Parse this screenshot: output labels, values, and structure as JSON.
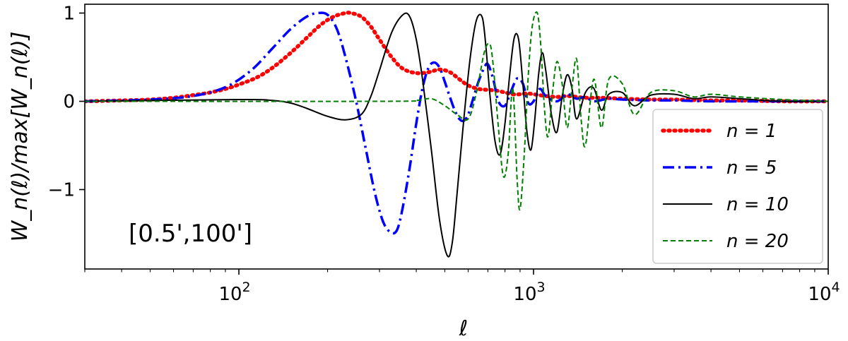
{
  "chart_data": {
    "type": "line",
    "title": "",
    "xlabel": "ℓ",
    "ylabel": "W_n(ℓ)/max[W_n(ℓ)]",
    "xscale": "log",
    "xlim": [
      30,
      10000
    ],
    "ylim": [
      -1.9,
      1.1
    ],
    "x_ticks": [
      {
        "value": 100,
        "label": "10",
        "exp": "2"
      },
      {
        "value": 1000,
        "label": "10",
        "exp": "3"
      },
      {
        "value": 10000,
        "label": "10",
        "exp": "4"
      }
    ],
    "y_ticks": [
      {
        "value": -1,
        "label": "−1"
      },
      {
        "value": 0,
        "label": "0"
      },
      {
        "value": 1,
        "label": "1"
      }
    ],
    "grid": false,
    "legend_position": "lower-right",
    "annotation": "[0.5',100']",
    "series": [
      {
        "name": "n = 1",
        "color": "#ff0000",
        "style": "dotted",
        "x": [
          30,
          40,
          50,
          60,
          70,
          80,
          90,
          100,
          115,
          130,
          150,
          170,
          190,
          210,
          230,
          240,
          260,
          280,
          300,
          330,
          360,
          400,
          440,
          480,
          520,
          560,
          600,
          650,
          700,
          750,
          800,
          850,
          900,
          950,
          1000,
          1100,
          1200,
          1300,
          1400,
          1500,
          1700,
          2000,
          2500,
          3000,
          4000,
          5000,
          7000,
          10000
        ],
        "y": [
          0.0,
          0.01,
          0.02,
          0.04,
          0.07,
          0.1,
          0.14,
          0.19,
          0.27,
          0.38,
          0.55,
          0.72,
          0.87,
          0.96,
          1.0,
          1.0,
          0.96,
          0.85,
          0.7,
          0.5,
          0.37,
          0.32,
          0.33,
          0.36,
          0.33,
          0.25,
          0.18,
          0.14,
          0.13,
          0.12,
          0.1,
          0.08,
          0.08,
          0.09,
          0.08,
          0.06,
          0.05,
          0.06,
          0.05,
          0.04,
          0.04,
          0.03,
          0.02,
          0.02,
          0.01,
          0.01,
          0.0,
          0.0
        ]
      },
      {
        "name": "n = 5",
        "color": "#0000ff",
        "style": "dashdot",
        "x": [
          30,
          50,
          70,
          90,
          110,
          130,
          150,
          170,
          185,
          200,
          215,
          230,
          250,
          270,
          290,
          310,
          330,
          345,
          360,
          380,
          400,
          420,
          440,
          460,
          480,
          500,
          520,
          540,
          560,
          580,
          600,
          620,
          650,
          680,
          700,
          730,
          760,
          800,
          840,
          880,
          920,
          960,
          1000,
          1050,
          1100,
          1200,
          1300,
          1400,
          1500,
          1600,
          1800,
          2000,
          2500,
          3000,
          4000,
          6000,
          10000
        ],
        "y": [
          0.0,
          0.02,
          0.06,
          0.16,
          0.35,
          0.6,
          0.82,
          0.96,
          1.0,
          0.98,
          0.82,
          0.5,
          0.0,
          -0.55,
          -1.05,
          -1.38,
          -1.49,
          -1.45,
          -1.2,
          -0.75,
          -0.25,
          0.15,
          0.38,
          0.44,
          0.38,
          0.22,
          0.05,
          -0.1,
          -0.2,
          -0.22,
          -0.15,
          0.0,
          0.22,
          0.38,
          0.42,
          0.25,
          0.0,
          -0.05,
          0.12,
          0.26,
          0.2,
          -0.02,
          0.0,
          0.14,
          0.06,
          0.0,
          0.08,
          0.03,
          0.05,
          0.0,
          0.03,
          0.02,
          0.01,
          0.01,
          0.0,
          0.0,
          0.0
        ]
      },
      {
        "name": "n = 10",
        "color": "#000000",
        "style": "solid",
        "x": [
          30,
          100,
          130,
          150,
          170,
          200,
          230,
          260,
          280,
          300,
          330,
          360,
          380,
          400,
          420,
          450,
          480,
          510,
          530,
          550,
          580,
          610,
          640,
          670,
          690,
          710,
          740,
          770,
          800,
          830,
          860,
          890,
          920,
          950,
          980,
          1010,
          1040,
          1070,
          1100,
          1150,
          1200,
          1250,
          1300,
          1350,
          1400,
          1500,
          1600,
          1700,
          1800,
          2000,
          2200,
          2500,
          3000,
          3500,
          4000,
          5000,
          7000,
          10000
        ],
        "y": [
          0.0,
          0.02,
          0.01,
          -0.02,
          -0.08,
          -0.17,
          -0.21,
          -0.15,
          0.05,
          0.35,
          0.78,
          0.98,
          0.96,
          0.7,
          0.25,
          -0.55,
          -1.35,
          -1.75,
          -1.6,
          -1.05,
          -0.2,
          0.5,
          0.92,
          0.95,
          0.6,
          0.1,
          -0.45,
          -0.6,
          -0.25,
          0.3,
          0.72,
          0.7,
          0.2,
          -0.35,
          -0.55,
          -0.2,
          0.3,
          0.55,
          0.35,
          -0.15,
          -0.35,
          0.05,
          0.3,
          0.15,
          -0.2,
          0.1,
          0.15,
          -0.1,
          0.08,
          0.1,
          -0.05,
          0.07,
          0.08,
          0.03,
          0.05,
          0.03,
          0.0,
          0.0
        ]
      },
      {
        "name": "n = 20",
        "color": "#008000",
        "style": "dashed",
        "x": [
          30,
          300,
          400,
          450,
          500,
          550,
          600,
          640,
          680,
          710,
          730,
          760,
          790,
          820,
          850,
          880,
          900,
          930,
          960,
          990,
          1030,
          1060,
          1090,
          1120,
          1160,
          1200,
          1250,
          1300,
          1350,
          1400,
          1450,
          1500,
          1600,
          1700,
          1800,
          2000,
          2200,
          2500,
          3000,
          3500,
          4000,
          5000,
          7000,
          10000
        ],
        "y": [
          0.0,
          0.0,
          0.01,
          0.03,
          -0.05,
          -0.15,
          -0.2,
          0.1,
          0.55,
          0.65,
          0.4,
          -0.3,
          -0.85,
          -0.6,
          0.15,
          -0.9,
          -1.22,
          -0.6,
          0.3,
          0.85,
          1.0,
          0.6,
          -0.1,
          -0.4,
          0.1,
          0.45,
          0.2,
          -0.3,
          0.15,
          0.48,
          -0.2,
          -0.5,
          0.25,
          -0.3,
          0.25,
          0.2,
          -0.15,
          0.1,
          0.12,
          0.05,
          0.08,
          0.05,
          0.02,
          0.0
        ]
      }
    ]
  }
}
